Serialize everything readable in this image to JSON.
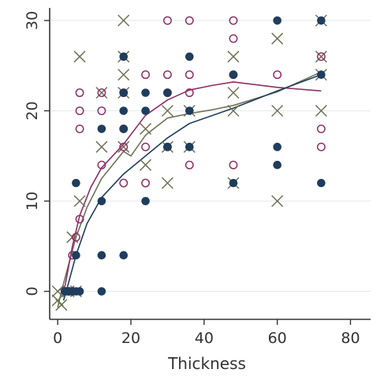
{
  "chart_data": {
    "type": "scatter",
    "title": "",
    "xlabel": "Thickness",
    "ylabel": "",
    "xlim": [
      -2.2,
      85.5
    ],
    "ylim": [
      -3.1,
      31.4
    ],
    "xticks": [
      0,
      20,
      40,
      60,
      80
    ],
    "yticks": [
      0,
      10,
      20,
      30
    ],
    "xtick_labels": [
      "0",
      "20",
      "40",
      "60",
      "80"
    ],
    "ytick_labels": [
      "0",
      "10",
      "20",
      "30"
    ],
    "grid": "horizontal",
    "legend": "none",
    "colors": {
      "navy": "#1f3d5c",
      "maroon": "#8f2f63",
      "olive": "#6d7357",
      "grid": "#e9ecef",
      "axis": "#333333"
    },
    "series": [
      {
        "marker": "filled-circle",
        "color": "navy",
        "points": [
          [
            2,
            0
          ],
          [
            3,
            0
          ],
          [
            4,
            0
          ],
          [
            5,
            0
          ],
          [
            6,
            0
          ],
          [
            12,
            0
          ],
          [
            5,
            4
          ],
          [
            12,
            4
          ],
          [
            18,
            4
          ],
          [
            5,
            12
          ],
          [
            12,
            10
          ],
          [
            12,
            18
          ],
          [
            18,
            18
          ],
          [
            18,
            20
          ],
          [
            18,
            22
          ],
          [
            18,
            26
          ],
          [
            24,
            10
          ],
          [
            24,
            20
          ],
          [
            24,
            22
          ],
          [
            30,
            16
          ],
          [
            30,
            22
          ],
          [
            36,
            16
          ],
          [
            36,
            20
          ],
          [
            36,
            26
          ],
          [
            48,
            12
          ],
          [
            48,
            24
          ],
          [
            60,
            14
          ],
          [
            60,
            16
          ],
          [
            60,
            30
          ],
          [
            72,
            12
          ],
          [
            72,
            24
          ],
          [
            72,
            30
          ]
        ],
        "fit_line": [
          [
            1.6,
            -1
          ],
          [
            3,
            1
          ],
          [
            5,
            4
          ],
          [
            8,
            7.5
          ],
          [
            12,
            10.4
          ],
          [
            18,
            13
          ],
          [
            24,
            15
          ],
          [
            30,
            17
          ],
          [
            36,
            18.6
          ],
          [
            48,
            20.3
          ],
          [
            60,
            22.2
          ],
          [
            72,
            24
          ]
        ]
      },
      {
        "marker": "hollow-circle",
        "color": "maroon",
        "points": [
          [
            2,
            0
          ],
          [
            3,
            0
          ],
          [
            4,
            0
          ],
          [
            4,
            4
          ],
          [
            5,
            6
          ],
          [
            6,
            8
          ],
          [
            6,
            18
          ],
          [
            6,
            20
          ],
          [
            6,
            22
          ],
          [
            12,
            14
          ],
          [
            12,
            20
          ],
          [
            12,
            22
          ],
          [
            18,
            12
          ],
          [
            18,
            16
          ],
          [
            18,
            18
          ],
          [
            18,
            22
          ],
          [
            24,
            12
          ],
          [
            24,
            16
          ],
          [
            24,
            24
          ],
          [
            30,
            16
          ],
          [
            30,
            22
          ],
          [
            30,
            24
          ],
          [
            30,
            30
          ],
          [
            36,
            14
          ],
          [
            36,
            22
          ],
          [
            36,
            24
          ],
          [
            36,
            30
          ],
          [
            48,
            14
          ],
          [
            48,
            24
          ],
          [
            48,
            28
          ],
          [
            48,
            30
          ],
          [
            60,
            24
          ],
          [
            72,
            16
          ],
          [
            72,
            18
          ],
          [
            72,
            26
          ]
        ],
        "fit_line": [
          [
            0,
            0
          ],
          [
            2,
            0.6
          ],
          [
            4,
            5
          ],
          [
            6,
            8.4
          ],
          [
            9,
            11.5
          ],
          [
            12,
            13.7
          ],
          [
            18,
            16.3
          ],
          [
            24,
            19.5
          ],
          [
            30,
            21.2
          ],
          [
            36,
            22.3
          ],
          [
            42,
            22.8
          ],
          [
            48,
            23.2
          ],
          [
            60,
            22.6
          ],
          [
            72,
            22.2
          ]
        ]
      },
      {
        "marker": "x",
        "color": "olive",
        "points": [
          [
            0,
            0
          ],
          [
            0,
            -1
          ],
          [
            1,
            -1.5
          ],
          [
            3,
            0
          ],
          [
            5,
            0
          ],
          [
            4,
            6
          ],
          [
            6,
            10
          ],
          [
            6,
            26
          ],
          [
            12,
            16
          ],
          [
            12,
            22
          ],
          [
            18,
            16
          ],
          [
            18,
            22
          ],
          [
            18,
            24
          ],
          [
            18,
            26
          ],
          [
            18,
            30
          ],
          [
            24,
            14
          ],
          [
            24,
            18
          ],
          [
            30,
            12
          ],
          [
            30,
            16
          ],
          [
            30,
            20
          ],
          [
            36,
            16
          ],
          [
            36,
            20
          ],
          [
            48,
            12
          ],
          [
            48,
            20
          ],
          [
            48,
            22
          ],
          [
            48,
            26
          ],
          [
            60,
            10
          ],
          [
            60,
            20
          ],
          [
            60,
            28
          ],
          [
            72,
            20
          ],
          [
            72,
            24
          ],
          [
            72,
            26
          ],
          [
            72,
            30
          ]
        ],
        "fit_line": [
          [
            0,
            -1.8
          ],
          [
            1,
            0
          ],
          [
            3,
            3
          ],
          [
            5,
            6
          ],
          [
            8,
            9.3
          ],
          [
            12,
            12.5
          ],
          [
            18,
            15.5
          ],
          [
            20,
            15
          ],
          [
            24,
            17.3
          ],
          [
            30,
            19.2
          ],
          [
            36,
            19.7
          ],
          [
            42,
            20.1
          ],
          [
            48,
            20.6
          ],
          [
            60,
            22.1
          ],
          [
            72,
            24.3
          ]
        ]
      }
    ]
  }
}
